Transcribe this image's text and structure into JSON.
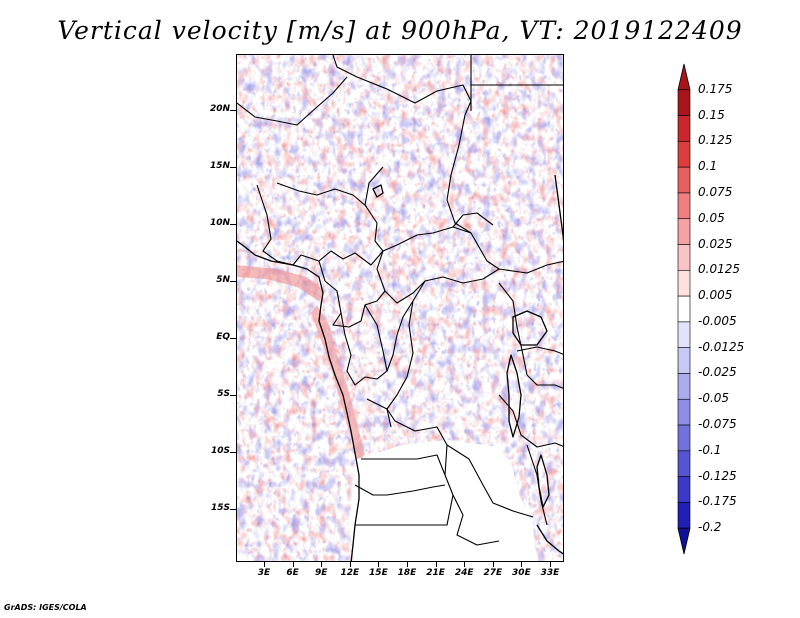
{
  "title": "Vertical velocity [m/s] at 900hPa, VT: 2019122409",
  "footer": "GrADS: IGES/COLA",
  "map": {
    "lat_labels": [
      "20N",
      "15N",
      "10N",
      "5N",
      "EQ",
      "5S",
      "10S",
      "15S"
    ],
    "lon_labels": [
      "3E",
      "6E",
      "9E",
      "12E",
      "15E",
      "18E",
      "21E",
      "24E",
      "27E",
      "30E",
      "33E"
    ]
  },
  "colorbar": {
    "levels": [
      "0.175",
      "0.15",
      "0.125",
      "0.1",
      "0.075",
      "0.05",
      "0.025",
      "0.0125",
      "0.005",
      "-0.005",
      "-0.0125",
      "-0.025",
      "-0.05",
      "-0.075",
      "-0.1",
      "-0.125",
      "-0.175",
      "-0.2"
    ],
    "colors": [
      "#a8151b",
      "#c8282d",
      "#dc3e3e",
      "#e85f5f",
      "#f08080",
      "#f6a2a2",
      "#fac4c4",
      "#fde0e0",
      "#ffffff",
      "#e2e2fa",
      "#c8c8f4",
      "#ababed",
      "#8e8ee6",
      "#7272dd",
      "#5555d2",
      "#3a3ac7",
      "#2020b5",
      "#10109a"
    ]
  }
}
